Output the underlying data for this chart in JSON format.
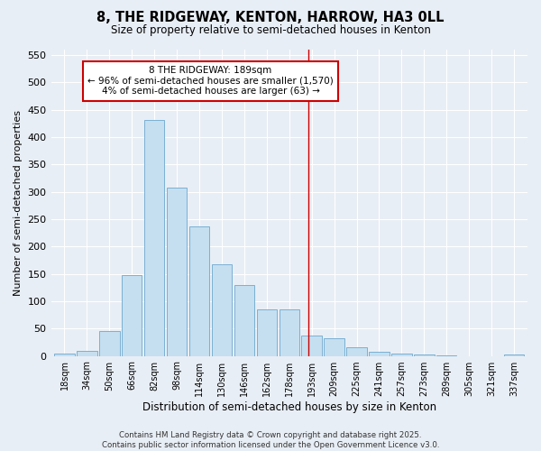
{
  "title": "8, THE RIDGEWAY, KENTON, HARROW, HA3 0LL",
  "subtitle": "Size of property relative to semi-detached houses in Kenton",
  "xlabel": "Distribution of semi-detached houses by size in Kenton",
  "ylabel": "Number of semi-detached properties",
  "bar_color": "#c5dff0",
  "bar_edge_color": "#7ab0d4",
  "background_color": "#e8eef5",
  "categories": [
    "18sqm",
    "34sqm",
    "50sqm",
    "66sqm",
    "82sqm",
    "98sqm",
    "114sqm",
    "130sqm",
    "146sqm",
    "162sqm",
    "178sqm",
    "193sqm",
    "209sqm",
    "225sqm",
    "241sqm",
    "257sqm",
    "273sqm",
    "289sqm",
    "305sqm",
    "321sqm",
    "337sqm"
  ],
  "values": [
    5,
    10,
    46,
    148,
    432,
    308,
    236,
    168,
    130,
    85,
    85,
    38,
    32,
    16,
    8,
    4,
    2,
    1,
    0,
    0,
    2
  ],
  "ylim": [
    0,
    560
  ],
  "yticks": [
    0,
    50,
    100,
    150,
    200,
    250,
    300,
    350,
    400,
    450,
    500,
    550
  ],
  "vline_x_idx": 10.87,
  "vline_color": "#cc0000",
  "annotation_title": "8 THE RIDGEWAY: 189sqm",
  "annotation_line1": "← 96% of semi-detached houses are smaller (1,570)",
  "annotation_line2": "4% of semi-detached houses are larger (63) →",
  "annotation_box_color": "#cc0000",
  "footer_line1": "Contains HM Land Registry data © Crown copyright and database right 2025.",
  "footer_line2": "Contains public sector information licensed under the Open Government Licence v3.0."
}
